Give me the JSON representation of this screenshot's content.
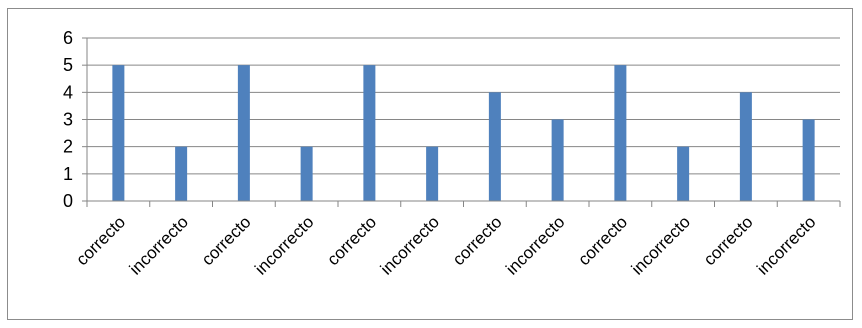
{
  "chart_data": {
    "type": "bar",
    "categories": [
      "correcto",
      "incorrecto",
      "correcto",
      "incorrecto",
      "correcto",
      "incorrecto",
      "correcto",
      "incorrecto",
      "correcto",
      "incorrecto",
      "correcto",
      "incorrecto"
    ],
    "values": [
      5,
      2,
      5,
      2,
      5,
      2,
      4,
      3,
      5,
      2,
      4,
      3
    ],
    "ylim": [
      0,
      6
    ],
    "yticks": [
      "0",
      "1",
      "2",
      "3",
      "4",
      "5",
      "6"
    ],
    "grid": true,
    "legend": "none",
    "bar_color": "#4f81bd",
    "grid_color": "#868686"
  }
}
